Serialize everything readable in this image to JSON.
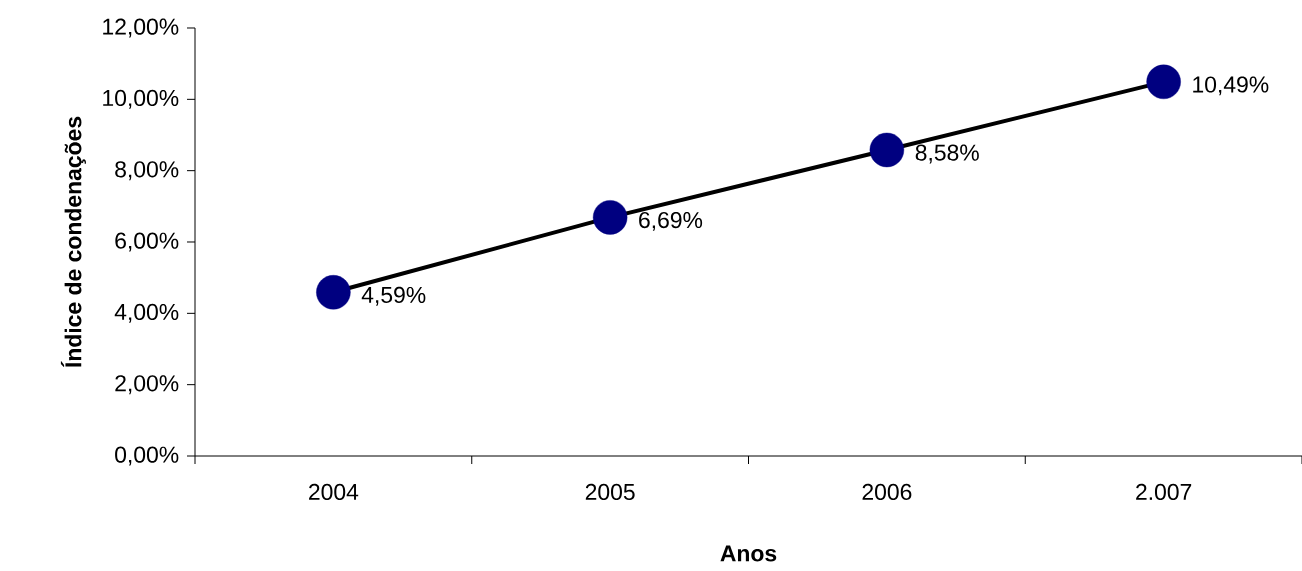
{
  "chart_data": {
    "type": "line",
    "xlabel": "Anos",
    "ylabel": "Índice de condenações",
    "categories": [
      "2004",
      "2005",
      "2006",
      "2.007"
    ],
    "series": [
      {
        "color": "#000000",
        "colors": [
          "#000080",
          "#000080",
          "#000080",
          "#000080"
        ],
        "values": [
          4.59,
          6.69,
          8.58,
          10.49
        ],
        "value_labels": [
          "4,59%",
          "6,69%",
          "8,58%",
          "10,49%"
        ]
      }
    ],
    "ylim": [
      0,
      12
    ],
    "yticks": [
      {
        "value": 0,
        "label": "0,00%"
      },
      {
        "value": 2,
        "label": "2,00%"
      },
      {
        "value": 4,
        "label": "4,00%"
      },
      {
        "value": 6,
        "label": "6,00%"
      },
      {
        "value": 8,
        "label": "8,00%"
      },
      {
        "value": 10,
        "label": "10,00%"
      },
      {
        "value": 12,
        "label": "12,00%"
      }
    ],
    "marker": "circle",
    "line_style": "solid",
    "grid": false
  }
}
